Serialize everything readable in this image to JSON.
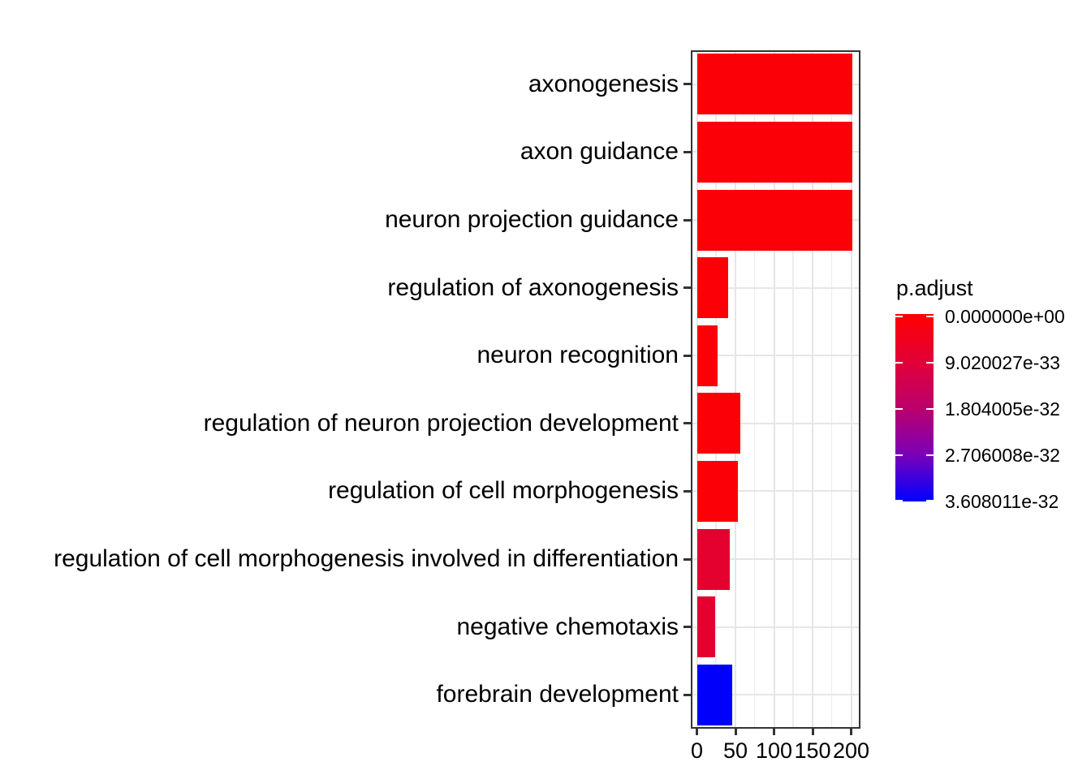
{
  "chart_data": {
    "type": "bar",
    "orientation": "horizontal",
    "title": "",
    "xlabel": "",
    "ylabel": "",
    "categories": [
      "axonogenesis",
      "axon guidance",
      "neuron projection guidance",
      "regulation of axonogenesis",
      "neuron recognition",
      "regulation of neuron projection development",
      "regulation of cell morphogenesis",
      "regulation of cell morphogenesis involved in differentiation",
      "negative chemotaxis",
      "forebrain development"
    ],
    "values": [
      202,
      202,
      202,
      41,
      27,
      56,
      53,
      43,
      24,
      46
    ],
    "bar_colors": [
      "#FB0007",
      "#FB0007",
      "#FB0007",
      "#FB0007",
      "#FB0007",
      "#FB0007",
      "#FB0007",
      "#E4002F",
      "#E4002F",
      "#0000FB"
    ],
    "x_ticks": [
      0,
      50,
      100,
      150,
      200
    ],
    "x_minor_gridlines": [
      25,
      75,
      125,
      175
    ],
    "xlim": [
      0,
      200
    ],
    "grid": true,
    "panel_background": "#FFFFFF",
    "gridline_color": "#E6E6E6",
    "minor_gridline_color": "#EDEDED",
    "legend": {
      "title": "p.adjust",
      "type": "colorbar",
      "position": "right",
      "tick_labels": [
        "0.000000e+00",
        "9.020027e-33",
        "1.804005e-32",
        "2.706008e-32",
        "3.608011e-32"
      ],
      "gradient_stops": [
        "#FF0000",
        "#E30037",
        "#BB006B",
        "#7B00B8",
        "#0000FF"
      ]
    }
  }
}
